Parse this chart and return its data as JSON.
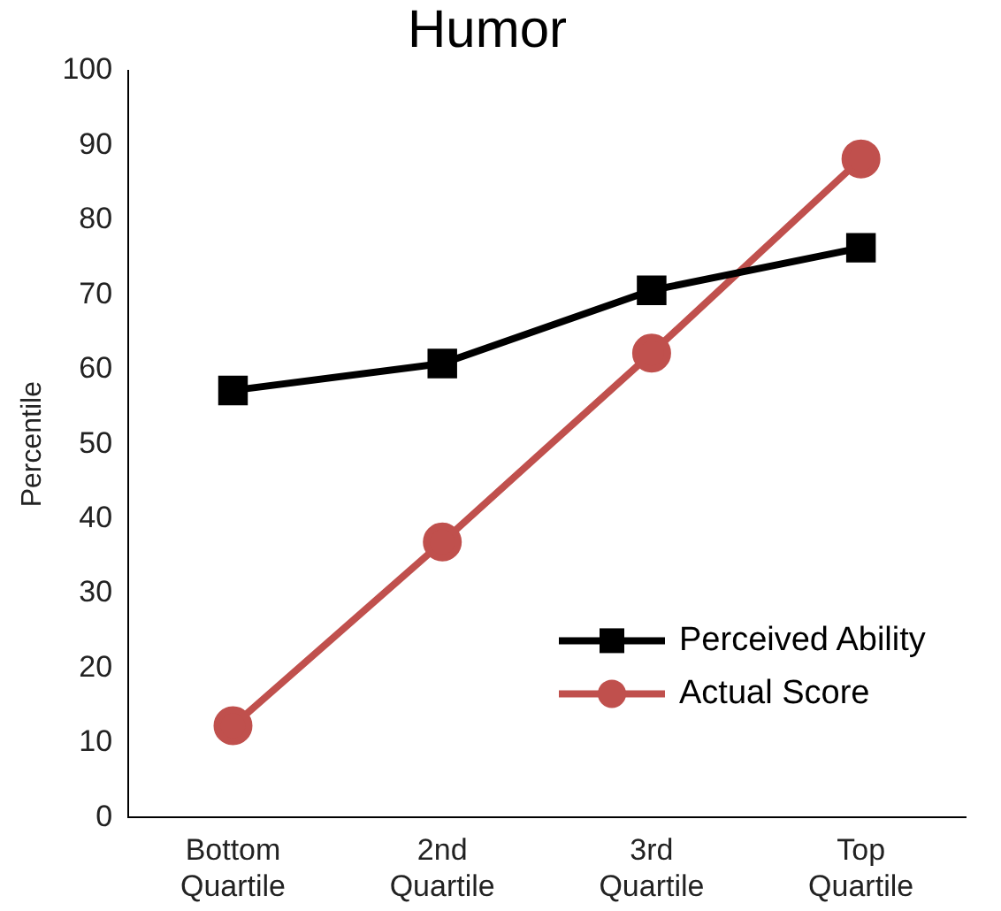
{
  "chart_data": {
    "type": "line",
    "title": "Humor",
    "ylabel": "Percentile",
    "categories": [
      "Bottom Quartile",
      "2nd Quartile",
      "3rd Quartile",
      "Top Quartile"
    ],
    "series": [
      {
        "name": "Perceived Ability",
        "color": "#000000",
        "marker": "square",
        "values": [
          57.2,
          60.8,
          70.6,
          76.3
        ]
      },
      {
        "name": "Actual Score",
        "color": "#c0504d",
        "marker": "circle",
        "values": [
          12.3,
          36.9,
          62.2,
          88.2
        ]
      }
    ],
    "ylim": [
      0,
      100
    ],
    "yticks": [
      0,
      10,
      20,
      30,
      40,
      50,
      60,
      70,
      80,
      90,
      100
    ],
    "grid": false,
    "legend": "bottom right",
    "line_style": "solid"
  }
}
